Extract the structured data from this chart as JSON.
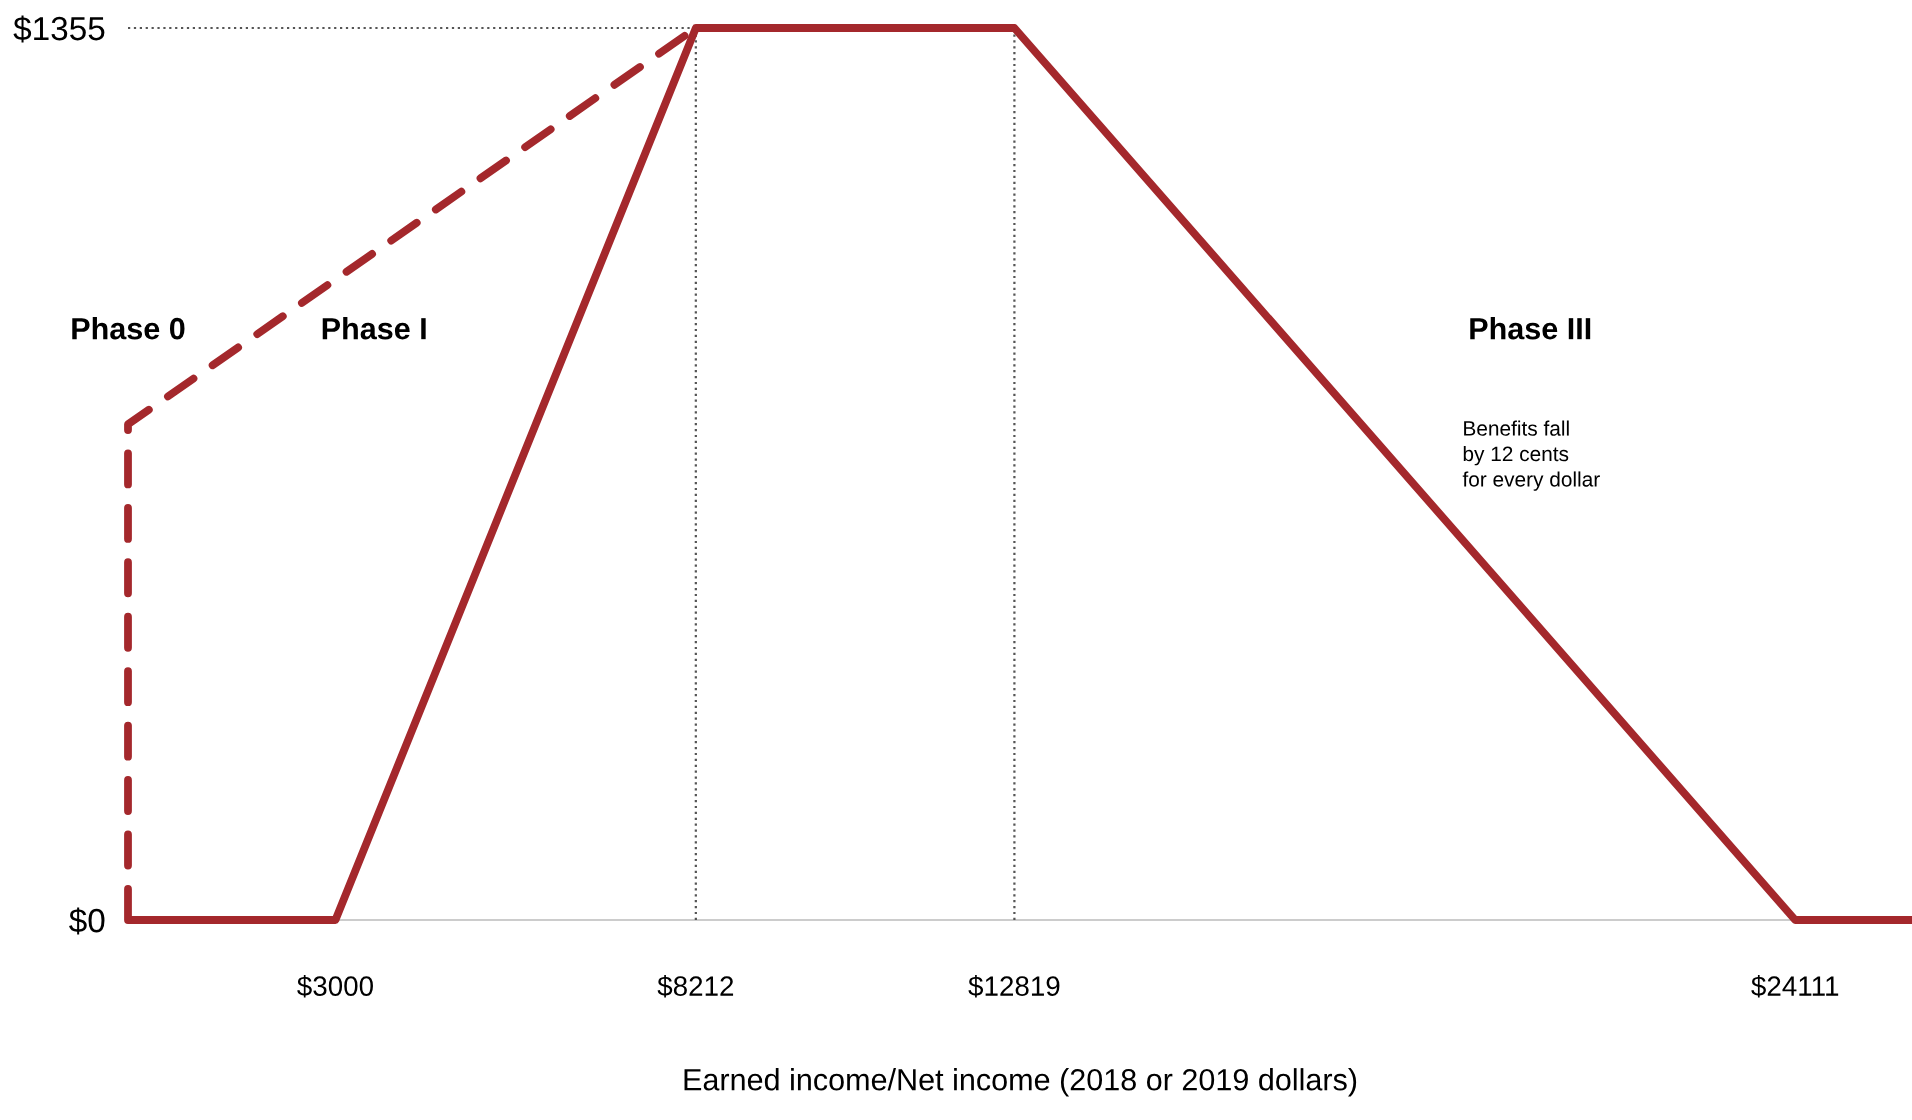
{
  "chart_data": {
    "type": "line",
    "xlabel": "Earned income/Net income (2018 or 2019 dollars)",
    "xlim": [
      0,
      25800
    ],
    "ylim": [
      0,
      1355
    ],
    "xticks": [
      {
        "value": 3000,
        "label": "$3000"
      },
      {
        "value": 8212,
        "label": "$8212"
      },
      {
        "value": 12819,
        "label": "$12819"
      },
      {
        "value": 24111,
        "label": "$24111"
      }
    ],
    "yticks": [
      {
        "value": 0,
        "label": "$0"
      },
      {
        "value": 1355,
        "label": "$1355"
      }
    ],
    "series": [
      {
        "color": "#a4282c",
        "x": [
          0,
          3000,
          8212,
          12819,
          24111,
          25800
        ],
        "values": [
          0,
          0,
          1355,
          1355,
          0,
          0
        ],
        "line_style": "solid"
      },
      {
        "color": "#a4282c",
        "x": [
          0,
          0,
          8212
        ],
        "values": [
          0,
          753,
          1355
        ],
        "line_style": "dashed"
      }
    ],
    "ref_lines": [
      {
        "axis": "x",
        "value": 8212,
        "color": "#555555",
        "line_style": "dotted"
      },
      {
        "axis": "x",
        "value": 12819,
        "color": "#555555",
        "line_style": "dotted"
      },
      {
        "axis": "y",
        "value": 1355,
        "color": "#555555",
        "line_style": "dotted"
      }
    ],
    "annotations": [
      "Phase 0",
      "Phase I",
      "Phase III",
      "Benefits fall\nby 12 cents\nfor every dollar"
    ],
    "grid": false,
    "marker": "none"
  }
}
